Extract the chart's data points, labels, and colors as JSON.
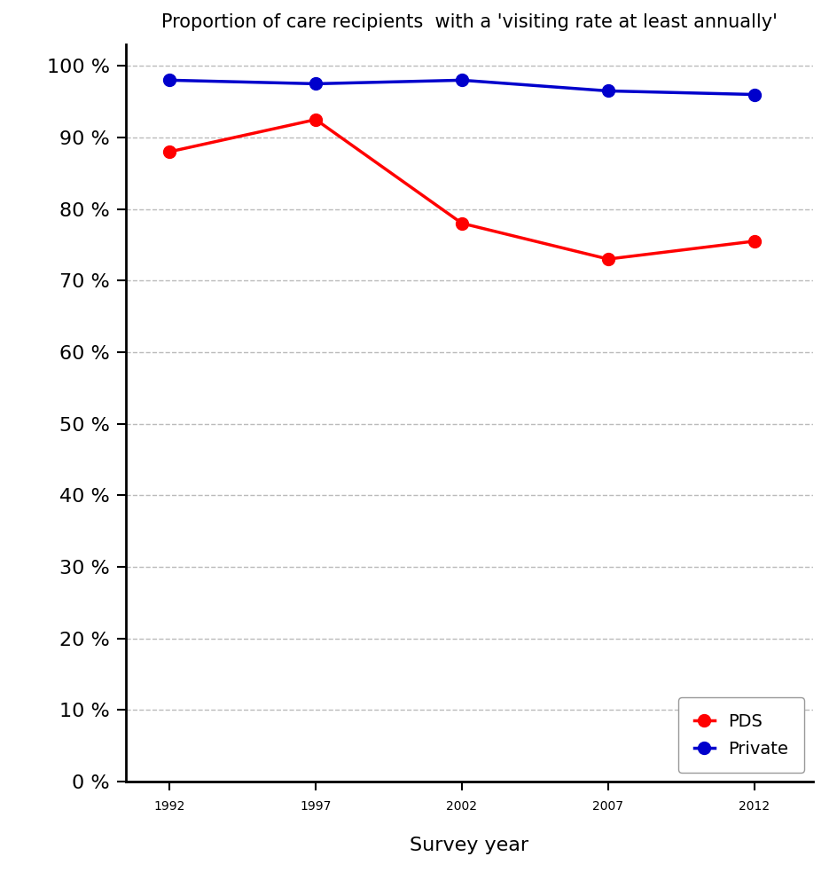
{
  "title": "Proportion of care recipients  with a 'visiting rate at least annually'",
  "xlabel": "Survey year",
  "years": [
    1992,
    1997,
    2002,
    2007,
    2012
  ],
  "pds_values": [
    88,
    92.5,
    78,
    73,
    75.5
  ],
  "private_values": [
    98,
    97.5,
    98,
    96.5,
    96
  ],
  "pds_color": "#ff0000",
  "private_color": "#0000cc",
  "line_width": 2.5,
  "marker_size": 10,
  "yticks": [
    0,
    10,
    20,
    30,
    40,
    50,
    60,
    70,
    80,
    90,
    100
  ],
  "ylim": [
    0,
    103
  ],
  "xlim": [
    1990.5,
    2014
  ],
  "legend_pds": "PDS",
  "legend_private": "Private",
  "grid_color": "#bbbbbb",
  "title_fontsize": 15,
  "label_fontsize": 16,
  "tick_fontsize": 16,
  "legend_fontsize": 14
}
